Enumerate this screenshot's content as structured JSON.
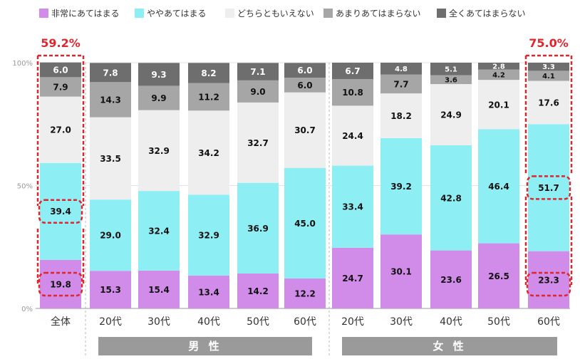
{
  "chart_data": {
    "type": "bar",
    "stacked": true,
    "orientation": "vertical",
    "categories": [
      "全体",
      "20代",
      "30代",
      "40代",
      "50代",
      "60代",
      "20代",
      "30代",
      "40代",
      "50代",
      "60代"
    ],
    "groups": [
      {
        "label": "男 性",
        "categories": [
          "20代",
          "30代",
          "40代",
          "50代",
          "60代"
        ]
      },
      {
        "label": "女 性",
        "categories": [
          "20代",
          "30代",
          "40代",
          "50代",
          "60代"
        ]
      }
    ],
    "series": [
      {
        "name": "非常にあてはまる",
        "color": "#d18be8",
        "values": [
          19.8,
          15.3,
          15.4,
          13.4,
          14.2,
          12.2,
          24.7,
          30.1,
          23.6,
          26.5,
          23.3
        ]
      },
      {
        "name": "ややあてはまる",
        "color": "#8deff4",
        "values": [
          39.4,
          29.0,
          32.4,
          32.9,
          36.9,
          45.0,
          33.4,
          39.2,
          42.8,
          46.4,
          51.7
        ]
      },
      {
        "name": "どちらともいえない",
        "color": "#eeeeee",
        "values": [
          27.0,
          33.5,
          32.9,
          34.2,
          32.7,
          30.7,
          24.4,
          18.2,
          24.9,
          20.1,
          17.6
        ]
      },
      {
        "name": "あまりあてはまらない",
        "color": "#a6a6a6",
        "values": [
          7.9,
          14.3,
          9.9,
          11.2,
          9.0,
          6.0,
          10.8,
          7.7,
          3.6,
          4.2,
          4.1
        ]
      },
      {
        "name": "全くあてはまらない",
        "color": "#6e6e6e",
        "values": [
          6.0,
          7.8,
          9.3,
          8.2,
          7.1,
          6.0,
          6.7,
          4.8,
          5.1,
          2.8,
          3.3
        ]
      }
    ],
    "yticks": [
      "0%",
      "50%",
      "100%"
    ],
    "ylim": [
      0,
      100
    ],
    "legend": "top",
    "callouts": [
      {
        "category_index": 0,
        "label": "59.2%"
      },
      {
        "category_index": 10,
        "label": "75.0%"
      }
    ],
    "highlighted": [
      {
        "category_index": 0,
        "series_index": 0
      },
      {
        "category_index": 0,
        "series_index": 1
      },
      {
        "category_index": 10,
        "series_index": 0
      },
      {
        "category_index": 10,
        "series_index": 1
      }
    ]
  }
}
